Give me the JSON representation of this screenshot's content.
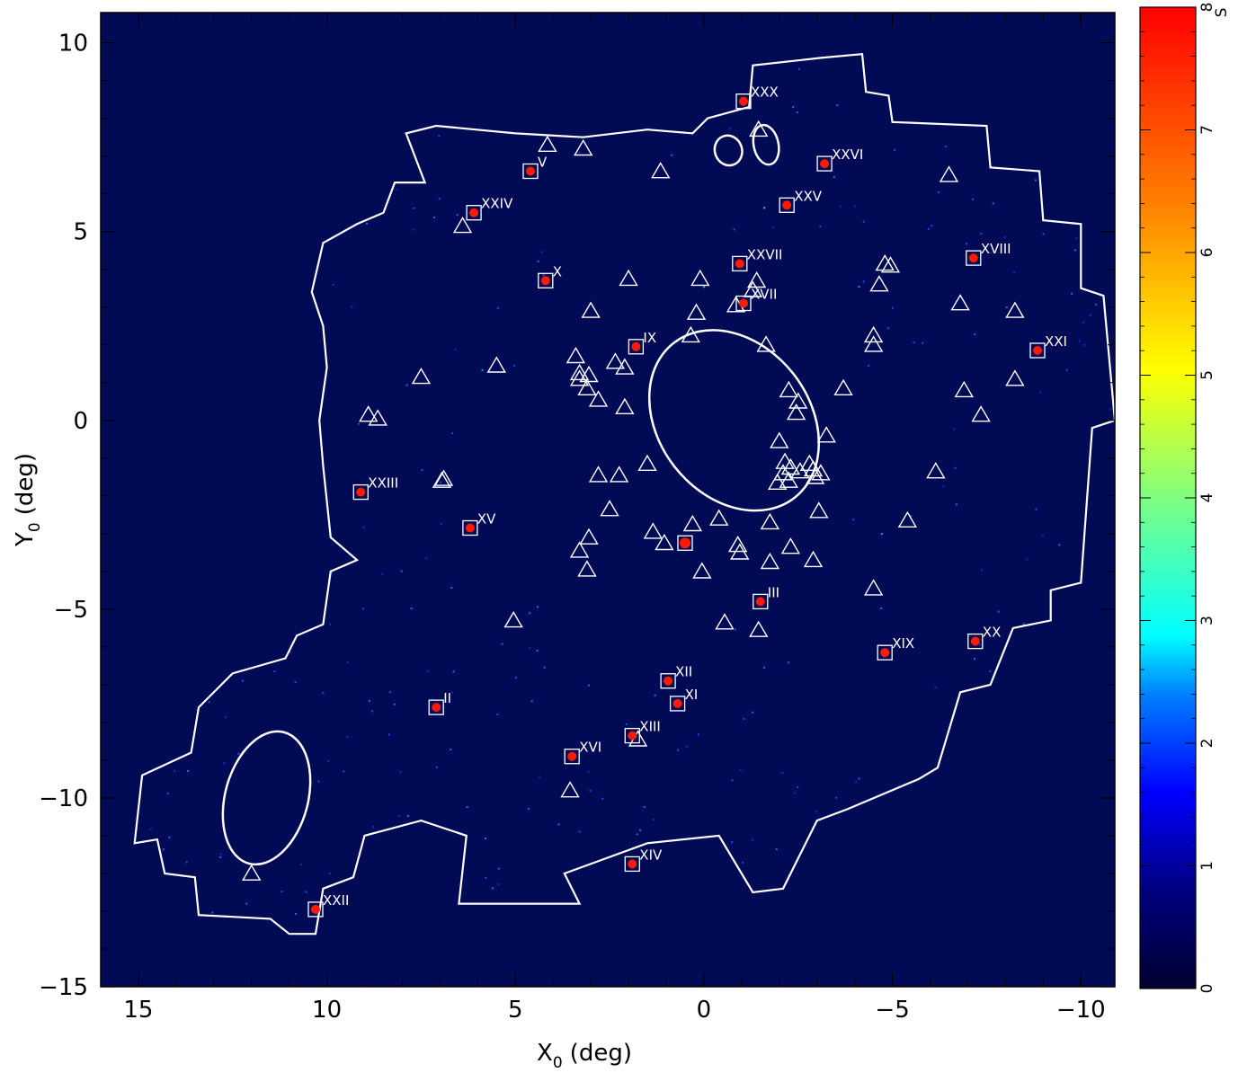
{
  "chart_data": {
    "type": "heatmap",
    "xlabel": "X",
    "xlabel_sub": "0",
    "xlabel_unit": "(deg)",
    "ylabel": "Y",
    "ylabel_sub": "0",
    "ylabel_unit": "(deg)",
    "xlim": [
      16,
      -10.9
    ],
    "ylim": [
      -15,
      10.8
    ],
    "x_ticks": [
      15,
      10,
      5,
      0,
      -5,
      -10
    ],
    "x_tick_labels": [
      "15",
      "10",
      "5",
      "0",
      "−5",
      "−10"
    ],
    "y_ticks": [
      10,
      5,
      0,
      -5,
      -10,
      -15
    ],
    "y_tick_labels": [
      "10",
      "5",
      "0",
      "−5",
      "−10",
      "−15"
    ],
    "colorbar": {
      "label": "S",
      "range": [
        0,
        8
      ],
      "ticks": [
        0,
        1,
        2,
        3,
        4,
        5,
        6,
        7,
        8
      ],
      "tick_labels": [
        "0",
        "1",
        "2",
        "3",
        "4",
        "5",
        "6",
        "7",
        "8"
      ]
    },
    "colors": {
      "background": "#000a55",
      "outline": "#ffffff",
      "low": "#00007f",
      "blue": "#0040ff",
      "cyan": "#00ffff",
      "green": "#80ff80",
      "yellow": "#ffff00",
      "orange": "#ff8000",
      "red": "#ff0000"
    },
    "survey_outline": [
      [
        -3.1,
        9.6
      ],
      [
        -4.2,
        9.7
      ],
      [
        -4.3,
        8.7
      ],
      [
        -4.9,
        8.6
      ],
      [
        -5.0,
        7.9
      ],
      [
        -7.5,
        7.8
      ],
      [
        -7.6,
        6.7
      ],
      [
        -8.9,
        6.6
      ],
      [
        -9.0,
        5.3
      ],
      [
        -10.0,
        5.2
      ],
      [
        -10.0,
        3.5
      ],
      [
        -10.6,
        3.3
      ],
      [
        -10.9,
        0
      ],
      [
        -10.3,
        -0.2
      ],
      [
        -10.0,
        -4.3
      ],
      [
        -9.2,
        -4.5
      ],
      [
        -9.2,
        -5.3
      ],
      [
        -8.2,
        -5.5
      ],
      [
        -7.6,
        -7.0
      ],
      [
        -6.8,
        -7.2
      ],
      [
        -6.2,
        -9.2
      ],
      [
        -5.7,
        -9.5
      ],
      [
        -3.8,
        -10.3
      ],
      [
        -3.0,
        -10.6
      ],
      [
        -2.1,
        -12.4
      ],
      [
        -1.3,
        -12.5
      ],
      [
        -0.4,
        -11.0
      ],
      [
        1.5,
        -11.2
      ],
      [
        3.7,
        -12.0
      ],
      [
        3.3,
        -12.8
      ],
      [
        6.5,
        -12.8
      ],
      [
        6.3,
        -11.0
      ],
      [
        7.5,
        -10.6
      ],
      [
        9.0,
        -11.0
      ],
      [
        9.3,
        -12.1
      ],
      [
        10.1,
        -12.4
      ],
      [
        10.3,
        -13.6
      ],
      [
        11.0,
        -13.6
      ],
      [
        11.5,
        -13.2
      ],
      [
        13.4,
        -13.1
      ],
      [
        13.5,
        -12.1
      ],
      [
        14.3,
        -12.0
      ],
      [
        14.5,
        -11.1
      ],
      [
        15.1,
        -11.2
      ],
      [
        14.9,
        -9.4
      ],
      [
        13.6,
        -8.8
      ],
      [
        13.4,
        -7.6
      ],
      [
        12.9,
        -7.1
      ],
      [
        12.5,
        -6.7
      ],
      [
        11.1,
        -6.3
      ],
      [
        10.8,
        -5.7
      ],
      [
        10.1,
        -5.4
      ],
      [
        9.9,
        -4.0
      ],
      [
        9.2,
        -3.7
      ],
      [
        9.9,
        -3.1
      ],
      [
        10.1,
        -1.2
      ],
      [
        10.2,
        0.0
      ],
      [
        10.0,
        1.4
      ],
      [
        10.1,
        2.5
      ],
      [
        10.4,
        3.4
      ],
      [
        10.1,
        4.7
      ],
      [
        9.2,
        5.2
      ],
      [
        8.5,
        5.5
      ],
      [
        8.2,
        6.3
      ],
      [
        7.4,
        6.3
      ],
      [
        7.9,
        7.6
      ],
      [
        7.1,
        7.8
      ],
      [
        5.0,
        7.6
      ],
      [
        3.2,
        7.5
      ],
      [
        1.5,
        7.7
      ],
      [
        0.3,
        7.6
      ],
      [
        -0.1,
        8.0
      ],
      [
        -1.2,
        8.3
      ],
      [
        -1.3,
        9.4
      ],
      [
        -3.1,
        9.6
      ]
    ],
    "ellipses": [
      {
        "x": -0.8,
        "y": 0.0,
        "rx": 2.0,
        "ry": 2.6,
        "angle": -38
      },
      {
        "x": -0.65,
        "y": 7.15,
        "rx": 0.36,
        "ry": 0.4,
        "angle": -20
      },
      {
        "x": -1.65,
        "y": 7.3,
        "rx": 0.33,
        "ry": 0.53,
        "angle": -12
      },
      {
        "x": 11.6,
        "y": -10.0,
        "rx": 1.1,
        "ry": 1.8,
        "angle": 15
      }
    ],
    "dwarfs": [
      {
        "label": "II",
        "x": 7.1,
        "y": -7.6
      },
      {
        "label": "III",
        "x": -1.5,
        "y": -4.8
      },
      {
        "label": "V",
        "x": 4.6,
        "y": 6.6
      },
      {
        "label": "IX",
        "x": 1.8,
        "y": 1.95
      },
      {
        "label": "X",
        "x": 4.2,
        "y": 3.7
      },
      {
        "label": "XI",
        "x": 0.7,
        "y": -7.5
      },
      {
        "label": "XII",
        "x": 0.95,
        "y": -6.9
      },
      {
        "label": "XIII",
        "x": 1.9,
        "y": -8.35
      },
      {
        "label": "XIV",
        "x": 1.9,
        "y": -11.75
      },
      {
        "label": "XV",
        "x": 6.2,
        "y": -2.85
      },
      {
        "label": "XVI",
        "x": 3.5,
        "y": -8.9
      },
      {
        "label": "XVII",
        "x": -1.05,
        "y": 3.1
      },
      {
        "label": "XVIII",
        "x": -7.15,
        "y": 4.3
      },
      {
        "label": "XIX",
        "x": -4.8,
        "y": -6.15
      },
      {
        "label": "XX",
        "x": -7.2,
        "y": -5.85
      },
      {
        "label": "XXI",
        "x": -8.85,
        "y": 1.85
      },
      {
        "label": "XXII",
        "x": 10.3,
        "y": -12.95
      },
      {
        "label": "XXIII",
        "x": 9.1,
        "y": -1.9
      },
      {
        "label": "XXIV",
        "x": 6.1,
        "y": 5.5
      },
      {
        "label": "XXV",
        "x": -2.2,
        "y": 5.7
      },
      {
        "label": "XXVI",
        "x": -3.2,
        "y": 6.8
      },
      {
        "label": "XXVII",
        "x": -0.95,
        "y": 4.15
      },
      {
        "label": "XXX",
        "x": -1.05,
        "y": 8.45
      }
    ],
    "unlabeled_box": {
      "x": 0.5,
      "y": -3.25
    },
    "triangles": [
      [
        4.15,
        7.3
      ],
      [
        3.2,
        7.2
      ],
      [
        1.15,
        6.6
      ],
      [
        -1.45,
        7.7
      ],
      [
        6.4,
        5.15
      ],
      [
        -6.5,
        6.5
      ],
      [
        2.0,
        3.75
      ],
      [
        0.1,
        3.75
      ],
      [
        3.0,
        2.9
      ],
      [
        -4.8,
        4.15
      ],
      [
        -4.95,
        4.1
      ],
      [
        -4.65,
        3.6
      ],
      [
        -6.8,
        3.1
      ],
      [
        -8.25,
        2.9
      ],
      [
        0.2,
        2.85
      ],
      [
        -1.3,
        3.45
      ],
      [
        -1.4,
        3.7
      ],
      [
        -0.85,
        3.05
      ],
      [
        -1.65,
        2.0
      ],
      [
        0.35,
        2.25
      ],
      [
        -4.5,
        2.25
      ],
      [
        -4.5,
        2.0
      ],
      [
        5.5,
        1.45
      ],
      [
        7.5,
        1.15
      ],
      [
        3.4,
        1.7
      ],
      [
        2.35,
        1.55
      ],
      [
        2.1,
        1.4
      ],
      [
        3.3,
        1.25
      ],
      [
        3.05,
        1.2
      ],
      [
        3.3,
        1.1
      ],
      [
        3.1,
        0.85
      ],
      [
        2.8,
        0.55
      ],
      [
        2.1,
        0.35
      ],
      [
        -2.25,
        0.8
      ],
      [
        -2.5,
        0.5
      ],
      [
        -2.45,
        0.2
      ],
      [
        -3.7,
        0.85
      ],
      [
        -6.9,
        0.8
      ],
      [
        -8.25,
        1.1
      ],
      [
        -7.35,
        0.15
      ],
      [
        8.9,
        0.15
      ],
      [
        8.65,
        0.05
      ],
      [
        -3.25,
        -0.4
      ],
      [
        -2.0,
        -0.55
      ],
      [
        -2.15,
        -1.1
      ],
      [
        -2.3,
        -1.25
      ],
      [
        -2.8,
        -1.15
      ],
      [
        -2.9,
        -1.3
      ],
      [
        -2.55,
        -1.35
      ],
      [
        -2.1,
        -1.4
      ],
      [
        -2.25,
        -1.6
      ],
      [
        -3.1,
        -1.4
      ],
      [
        -2.95,
        -1.5
      ],
      [
        -1.95,
        -1.65
      ],
      [
        1.5,
        -1.15
      ],
      [
        2.8,
        -1.45
      ],
      [
        2.25,
        -1.45
      ],
      [
        2.5,
        -2.35
      ],
      [
        6.9,
        -1.55
      ],
      [
        6.95,
        -1.6
      ],
      [
        -6.15,
        -1.35
      ],
      [
        -3.05,
        -2.4
      ],
      [
        -5.4,
        -2.65
      ],
      [
        -0.4,
        -2.6
      ],
      [
        -1.75,
        -2.7
      ],
      [
        0.3,
        -2.75
      ],
      [
        1.35,
        -2.95
      ],
      [
        1.05,
        -3.25
      ],
      [
        3.05,
        -3.1
      ],
      [
        3.3,
        -3.45
      ],
      [
        3.1,
        -3.95
      ],
      [
        -0.9,
        -3.3
      ],
      [
        -0.95,
        -3.5
      ],
      [
        -1.75,
        -3.75
      ],
      [
        -2.3,
        -3.35
      ],
      [
        -2.9,
        -3.7
      ],
      [
        0.05,
        -4.0
      ],
      [
        -4.5,
        -4.45
      ],
      [
        -0.55,
        -5.35
      ],
      [
        -1.45,
        -5.55
      ],
      [
        5.05,
        -5.3
      ],
      [
        1.75,
        -8.45
      ],
      [
        3.55,
        -9.8
      ],
      [
        12.0,
        -12.0
      ]
    ]
  }
}
